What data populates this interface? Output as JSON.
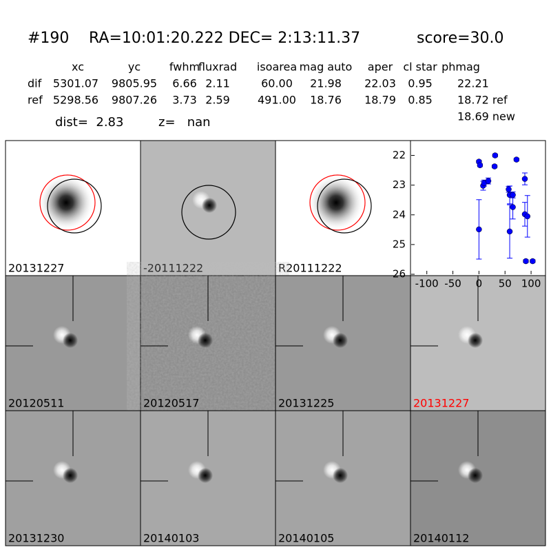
{
  "header": {
    "id": "#190",
    "coords": "RA=10:01:20.222 DEC= 2:13:11.37",
    "score": "score=30.0"
  },
  "table": {
    "columns": [
      "xc",
      "yc",
      "fwhm",
      "fluxrad",
      "isoarea",
      "mag auto",
      "aper",
      "cl star",
      "phmag"
    ],
    "rows": [
      [
        "dif",
        "5301.07",
        "9805.95",
        "6.66",
        "2.11",
        "60.00",
        "21.98",
        "22.03",
        "0.95",
        "22.21"
      ],
      [
        "ref",
        "5298.56",
        "9807.26",
        "3.73",
        "2.59",
        "491.00",
        "18.76",
        "18.79",
        "0.85",
        "18.72 ref"
      ]
    ],
    "extra": "18.69 new"
  },
  "summary": {
    "dist": "dist=  2.83",
    "z": "z=   nan"
  },
  "panels": [
    {
      "label": "20131227",
      "label_color": "#000000"
    },
    {
      "label": "-20111222",
      "label_color": "#000000"
    },
    {
      "label": "R20111222",
      "label_color": "#000000"
    },
    {
      "label": "20120511",
      "label_color": "#000000"
    },
    {
      "label": "20120517",
      "label_color": "#000000"
    },
    {
      "label": "20131225",
      "label_color": "#000000"
    },
    {
      "label": "20131227",
      "label_color": "#ff0000"
    },
    {
      "label": "20131230",
      "label_color": "#000000"
    },
    {
      "label": "20140103",
      "label_color": "#000000"
    },
    {
      "label": "20140105",
      "label_color": "#000000"
    },
    {
      "label": "20140112",
      "label_color": "#000000"
    }
  ],
  "chart_data": {
    "type": "scatter",
    "color": "#0000ff",
    "x": [
      0,
      0,
      2,
      8,
      10,
      18,
      31,
      30,
      57,
      59,
      59,
      65,
      65,
      72,
      88,
      88,
      93,
      90,
      103
    ],
    "values": [
      24.49,
      22.21,
      22.33,
      23.02,
      22.93,
      22.86,
      22.0,
      22.37,
      23.14,
      23.33,
      24.56,
      23.33,
      23.74,
      22.14,
      22.79,
      23.98,
      24.05,
      25.56,
      25.56
    ],
    "errors": [
      1.0,
      0.05,
      0.05,
      0.15,
      0.1,
      0.1,
      0.05,
      0.05,
      0.1,
      0.3,
      0.9,
      0.1,
      0.4,
      0.05,
      0.2,
      0.4,
      0.7,
      0.05,
      0.05
    ],
    "xlim": [
      -130,
      125
    ],
    "ylim": [
      21.5,
      26
    ],
    "y_inverted": true,
    "xticks": [
      -100,
      -50,
      0,
      50,
      100
    ],
    "yticks": [
      22,
      23,
      24,
      25,
      26
    ]
  }
}
